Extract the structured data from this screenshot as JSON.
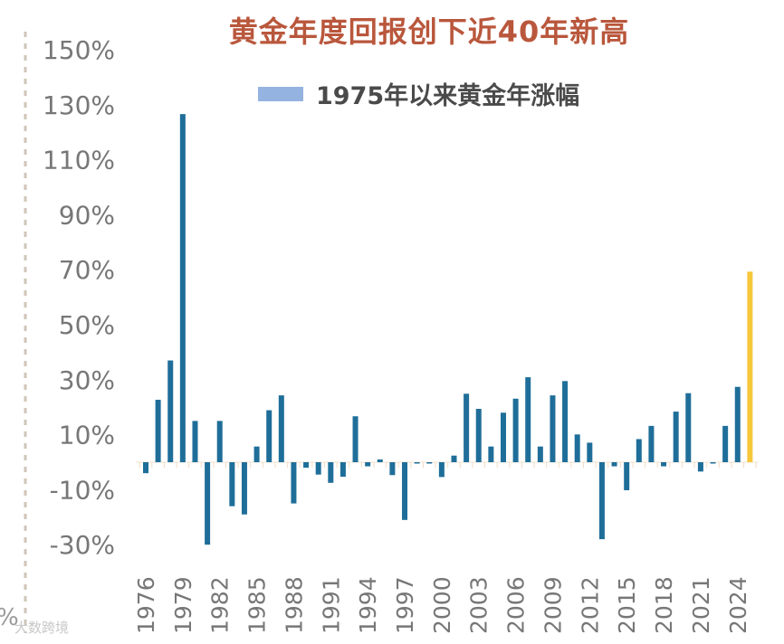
{
  "chart_data": {
    "type": "bar",
    "title": "黄金年度回报创下近40年新高",
    "legend": [
      "1975年以来黄金年涨幅"
    ],
    "legend_placement": "top",
    "ylim": [
      -30,
      150
    ],
    "yticks": [
      "150%",
      "130%",
      "110%",
      "90%",
      "70%",
      "50%",
      "30%",
      "10%",
      "-10%",
      "-30%"
    ],
    "ytick_values": [
      150,
      130,
      110,
      90,
      70,
      50,
      30,
      10,
      -10,
      -30
    ],
    "xtick_labels": [
      "1976",
      "1979",
      "1982",
      "1985",
      "1988",
      "1991",
      "1994",
      "1997",
      "2000",
      "2003",
      "2006",
      "2009",
      "2012",
      "2015",
      "2018",
      "2021",
      "2024"
    ],
    "categories": [
      1976,
      1977,
      1978,
      1979,
      1980,
      1981,
      1982,
      1983,
      1984,
      1985,
      1986,
      1987,
      1988,
      1989,
      1990,
      1991,
      1992,
      1993,
      1994,
      1995,
      1996,
      1997,
      1998,
      1999,
      2000,
      2001,
      2002,
      2003,
      2004,
      2005,
      2006,
      2007,
      2008,
      2009,
      2010,
      2011,
      2012,
      2013,
      2014,
      2015,
      2016,
      2017,
      2018,
      2019,
      2020,
      2021,
      2022,
      2023,
      2024,
      2025
    ],
    "values": [
      -4,
      22.7,
      37,
      126.6,
      15,
      -30,
      15,
      -16,
      -19,
      5.7,
      18.9,
      24.3,
      -15,
      -2,
      -4.5,
      -7.5,
      -5.3,
      16.7,
      -1.5,
      1,
      -4.7,
      -21,
      -0.5,
      0,
      -5.4,
      2.4,
      24.9,
      19.4,
      5.7,
      18,
      23.1,
      30.9,
      5.7,
      24.3,
      29.5,
      10.1,
      7.1,
      -28,
      -1.5,
      -10.2,
      8.4,
      13.2,
      -1.5,
      18.4,
      25.1,
      -3.4,
      -0.3,
      13.2,
      27.4,
      69.3
    ],
    "colors": {
      "bar": "#1f6e99",
      "highlight": "#f7c73b",
      "highlight_year": 2025,
      "legend_swatch": "#94b3e0",
      "title": "#b9573c"
    },
    "grid": false
  },
  "watermark": "大数跨境",
  "stray_text": "%"
}
